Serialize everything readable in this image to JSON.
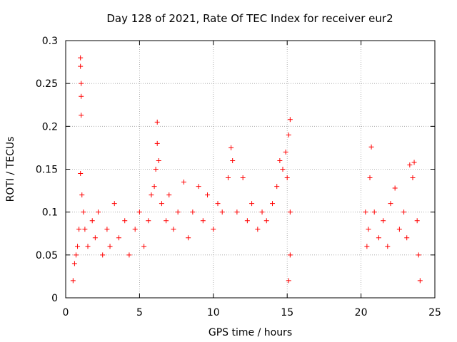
{
  "chart_data": {
    "type": "scatter",
    "title": "Day 128 of 2021, Rate Of TEC Index for receiver eur2",
    "xlabel": "GPS time / hours",
    "ylabel": "ROTI / TECUs",
    "xlim": [
      0,
      25
    ],
    "ylim": [
      0,
      0.3
    ],
    "xticks": [
      0,
      5,
      10,
      15,
      20,
      25
    ],
    "xtick_labels": [
      "0",
      "5",
      "10",
      "15",
      "20",
      "25"
    ],
    "yticks": [
      0,
      0.05,
      0.1,
      0.15,
      0.2,
      0.25,
      0.3
    ],
    "ytick_labels": [
      "0",
      "0.05",
      "0.1",
      "0.15",
      "0.2",
      "0.25",
      "0.3"
    ],
    "grid": true,
    "marker": "plus",
    "color": "#ff0000",
    "series": [
      {
        "points": [
          [
            0.5,
            0.02
          ],
          [
            0.6,
            0.04
          ],
          [
            0.7,
            0.05
          ],
          [
            0.8,
            0.06
          ],
          [
            0.9,
            0.08
          ],
          [
            1.0,
            0.28
          ],
          [
            1.0,
            0.27
          ],
          [
            1.05,
            0.25
          ],
          [
            1.05,
            0.235
          ],
          [
            1.05,
            0.213
          ],
          [
            1.0,
            0.145
          ],
          [
            1.1,
            0.12
          ],
          [
            1.2,
            0.1
          ],
          [
            1.3,
            0.08
          ],
          [
            1.5,
            0.06
          ],
          [
            1.8,
            0.09
          ],
          [
            2.0,
            0.07
          ],
          [
            2.2,
            0.1
          ],
          [
            2.5,
            0.05
          ],
          [
            2.8,
            0.08
          ],
          [
            3.0,
            0.06
          ],
          [
            3.3,
            0.11
          ],
          [
            3.6,
            0.07
          ],
          [
            4.0,
            0.09
          ],
          [
            4.3,
            0.05
          ],
          [
            4.7,
            0.08
          ],
          [
            5.0,
            0.1
          ],
          [
            5.3,
            0.06
          ],
          [
            5.6,
            0.09
          ],
          [
            5.8,
            0.12
          ],
          [
            6.0,
            0.13
          ],
          [
            6.1,
            0.15
          ],
          [
            6.2,
            0.18
          ],
          [
            6.2,
            0.205
          ],
          [
            6.3,
            0.16
          ],
          [
            6.5,
            0.11
          ],
          [
            6.8,
            0.09
          ],
          [
            7.0,
            0.12
          ],
          [
            7.3,
            0.08
          ],
          [
            7.6,
            0.1
          ],
          [
            8.0,
            0.135
          ],
          [
            8.3,
            0.07
          ],
          [
            8.6,
            0.1
          ],
          [
            9.0,
            0.13
          ],
          [
            9.3,
            0.09
          ],
          [
            9.6,
            0.12
          ],
          [
            10.0,
            0.08
          ],
          [
            10.3,
            0.11
          ],
          [
            10.6,
            0.1
          ],
          [
            11.0,
            0.14
          ],
          [
            11.2,
            0.175
          ],
          [
            11.3,
            0.16
          ],
          [
            11.6,
            0.1
          ],
          [
            12.0,
            0.14
          ],
          [
            12.3,
            0.09
          ],
          [
            12.6,
            0.11
          ],
          [
            13.0,
            0.08
          ],
          [
            13.3,
            0.1
          ],
          [
            13.6,
            0.09
          ],
          [
            14.0,
            0.11
          ],
          [
            14.3,
            0.13
          ],
          [
            14.5,
            0.16
          ],
          [
            14.7,
            0.15
          ],
          [
            14.9,
            0.17
          ],
          [
            15.0,
            0.14
          ],
          [
            15.1,
            0.19
          ],
          [
            15.2,
            0.208
          ],
          [
            15.2,
            0.1
          ],
          [
            15.2,
            0.05
          ],
          [
            15.1,
            0.02
          ],
          [
            20.3,
            0.1
          ],
          [
            20.4,
            0.06
          ],
          [
            20.5,
            0.08
          ],
          [
            20.6,
            0.14
          ],
          [
            20.7,
            0.176
          ],
          [
            20.9,
            0.1
          ],
          [
            21.2,
            0.07
          ],
          [
            21.5,
            0.09
          ],
          [
            21.8,
            0.06
          ],
          [
            22.0,
            0.11
          ],
          [
            22.3,
            0.128
          ],
          [
            22.6,
            0.08
          ],
          [
            22.9,
            0.1
          ],
          [
            23.1,
            0.07
          ],
          [
            23.3,
            0.155
          ],
          [
            23.5,
            0.14
          ],
          [
            23.6,
            0.158
          ],
          [
            23.8,
            0.09
          ],
          [
            23.9,
            0.05
          ],
          [
            24.0,
            0.02
          ]
        ]
      }
    ]
  }
}
